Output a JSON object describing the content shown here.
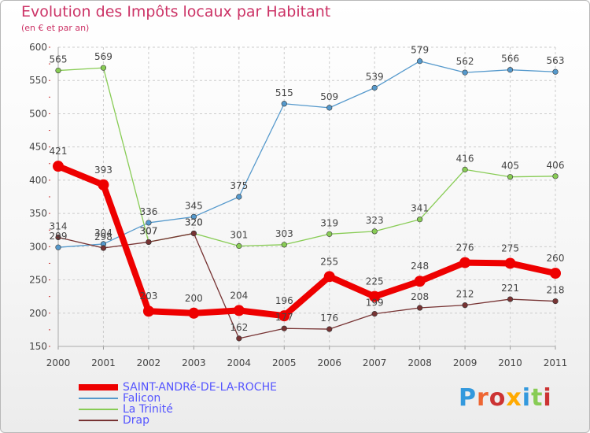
{
  "header": {
    "title": "Evolution des Impôts locaux par Habitant",
    "subtitle": "(en € et par an)"
  },
  "chart_data": {
    "type": "line",
    "title": "Evolution des Impôts locaux par Habitant",
    "subtitle": "(en € et par an)",
    "xlabel": "",
    "ylabel": "",
    "categories": [
      "2000",
      "2001",
      "2002",
      "2003",
      "2004",
      "2005",
      "2006",
      "2007",
      "2008",
      "2009",
      "2010",
      "2011"
    ],
    "ylim": [
      150,
      600
    ],
    "yticks": [
      150,
      200,
      250,
      300,
      350,
      400,
      450,
      500,
      550,
      600
    ],
    "grid": true,
    "legend_position": "bottom-left",
    "series": [
      {
        "name": "SAINT-ANDRé-DE-LA-ROCHE",
        "color": "#ee0000",
        "values": [
          421,
          393,
          203,
          200,
          204,
          196,
          255,
          225,
          248,
          276,
          275,
          260
        ],
        "labels": [
          "421",
          "393",
          "203",
          "200",
          "204",
          "196",
          "255",
          "225",
          "248",
          "276",
          "275",
          "260"
        ]
      },
      {
        "name": "Falicon",
        "color": "#5599cc",
        "values": [
          299,
          304,
          336,
          345,
          375,
          515,
          509,
          539,
          579,
          562,
          566,
          563
        ],
        "labels": [
          "299",
          "304",
          "336",
          "345",
          "375",
          "515",
          "509",
          "539",
          "579",
          "562",
          "566",
          "563"
        ]
      },
      {
        "name": "La Trinité",
        "color": "#88cc55",
        "values": [
          565,
          569,
          307,
          320,
          301,
          303,
          319,
          323,
          341,
          416,
          405,
          406
        ],
        "labels": [
          "565",
          "569",
          "307",
          "320",
          "301",
          "303",
          "319",
          "323",
          "341",
          "416",
          "405",
          "406"
        ]
      },
      {
        "name": "Drap",
        "color": "#773333",
        "values": [
          314,
          298,
          307,
          320,
          162,
          177,
          176,
          199,
          208,
          212,
          221,
          218
        ],
        "labels": [
          "314",
          "298",
          "307",
          "320",
          "162",
          "177",
          "176",
          "199",
          "208",
          "212",
          "221",
          "218"
        ]
      }
    ]
  },
  "legend": {
    "items": [
      {
        "label": "SAINT-ANDRé-DE-LA-ROCHE",
        "color": "#ee0000"
      },
      {
        "label": "Falicon",
        "color": "#5599cc"
      },
      {
        "label": "La Trinité",
        "color": "#88cc55"
      },
      {
        "label": "Drap",
        "color": "#773333"
      }
    ]
  },
  "logo": {
    "text": "Proxiti",
    "colors": [
      "#3399dd",
      "#ee6633",
      "#cc3333",
      "#ffaa00",
      "#3399dd",
      "#88cc55",
      "#cc3333"
    ]
  }
}
